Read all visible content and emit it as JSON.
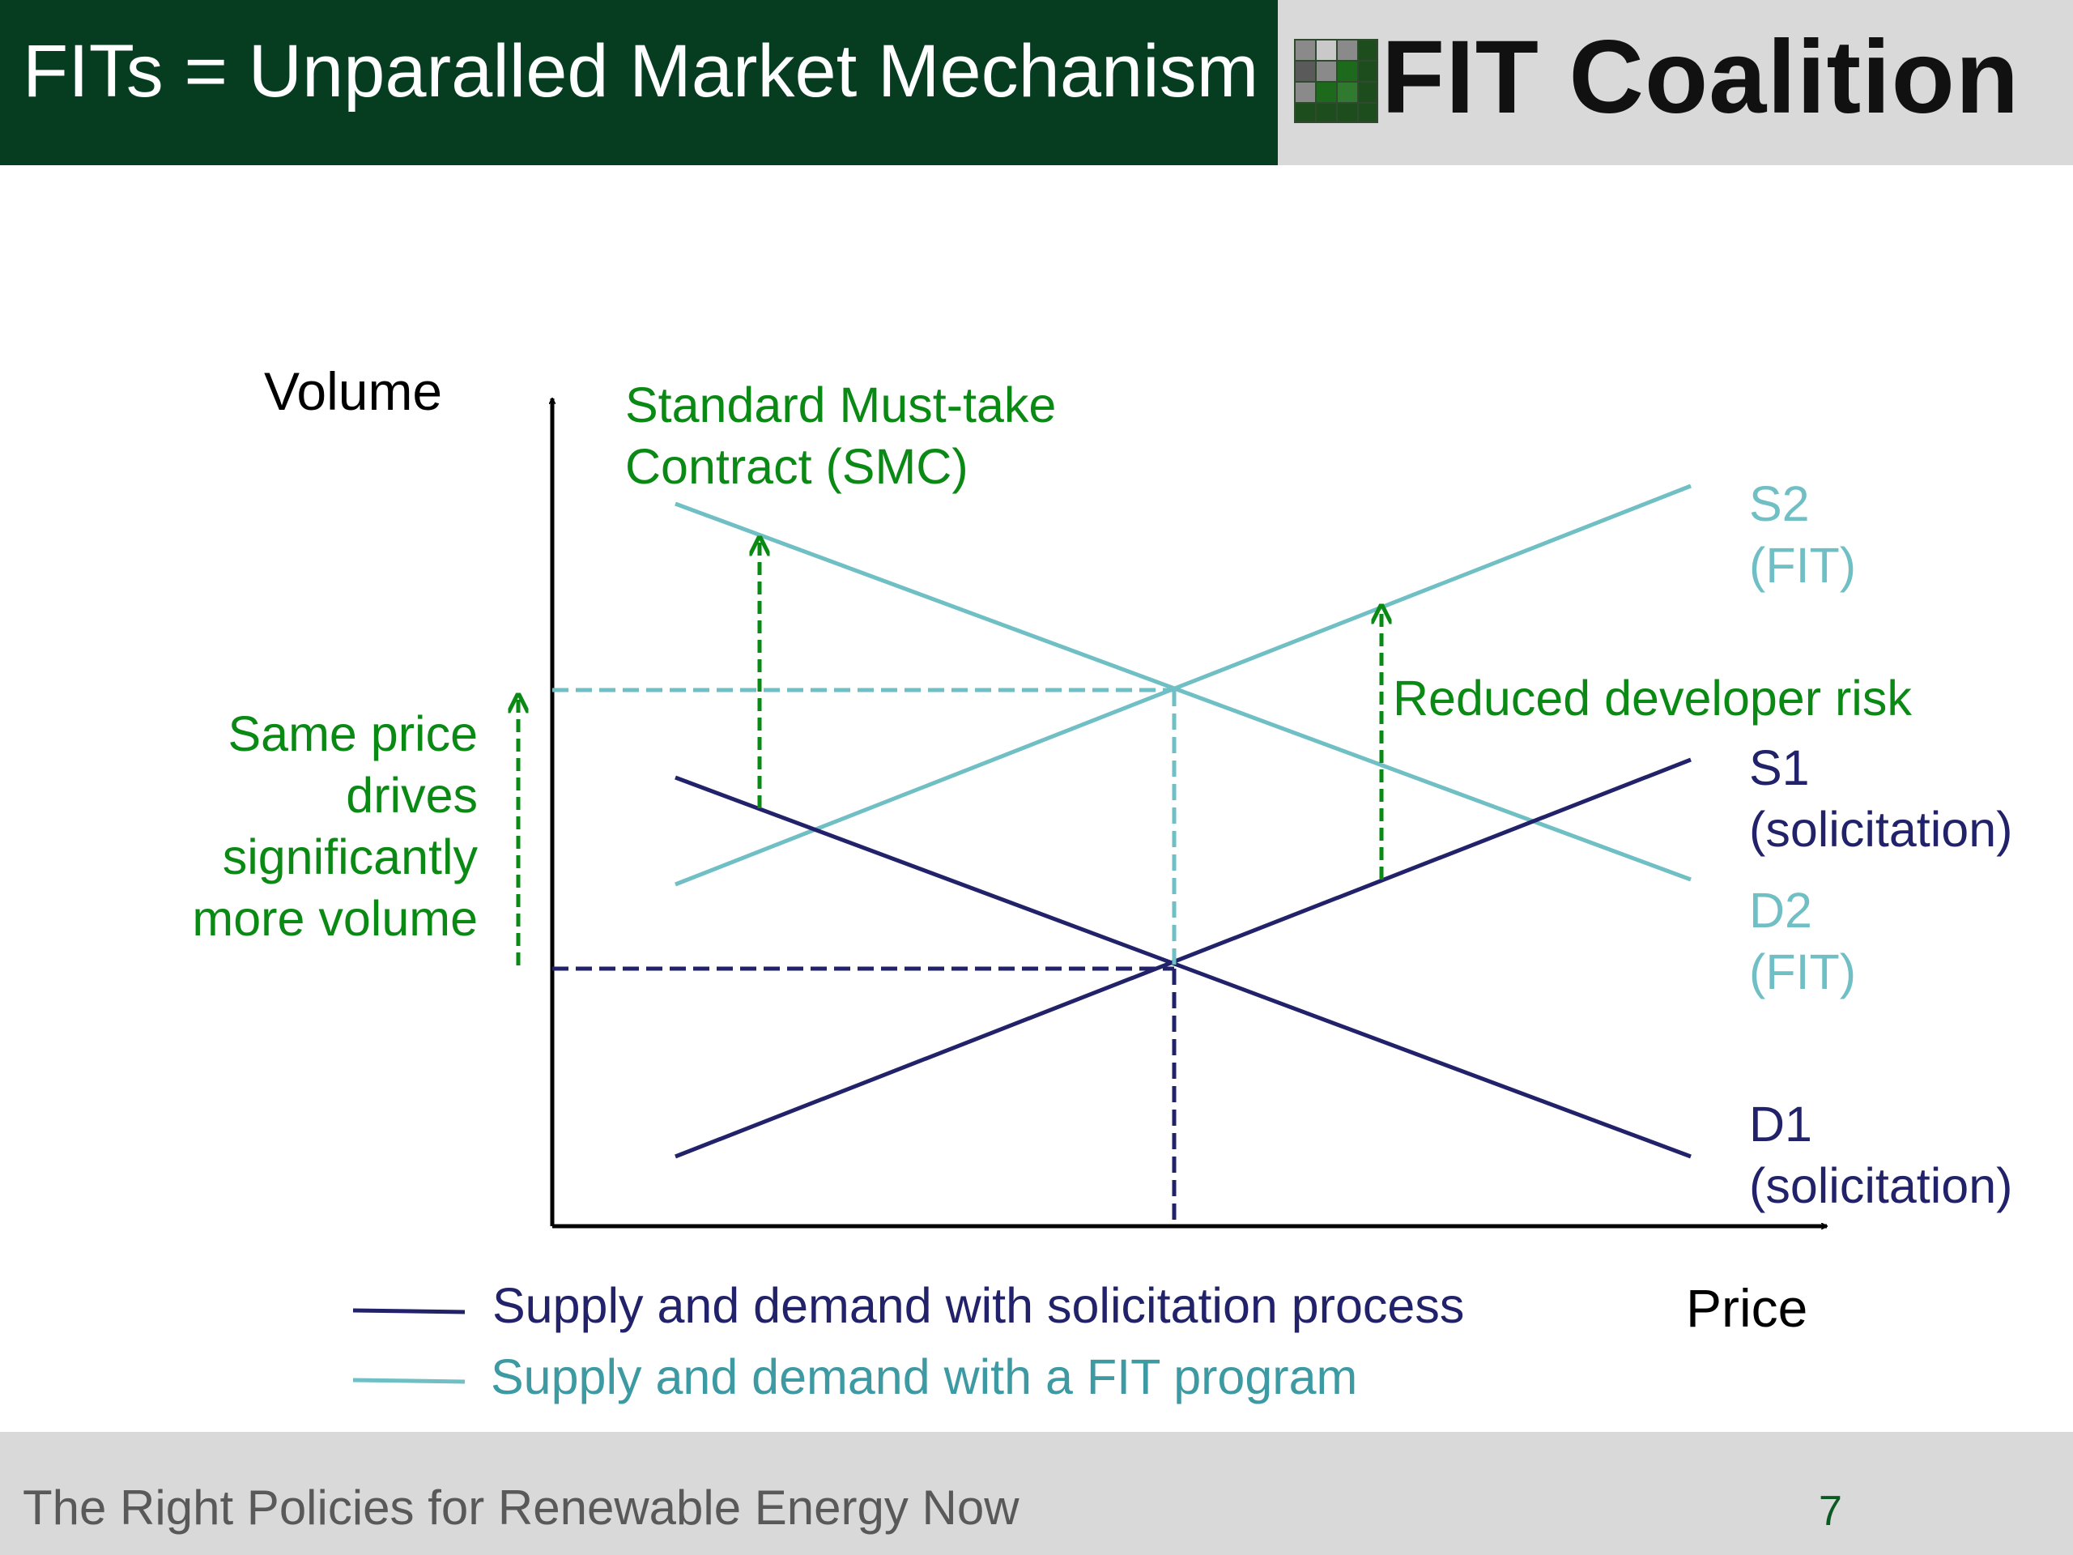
{
  "slide": {
    "title": "FITs = Unparalled Market Mechanism",
    "logo_text": "FIT Coalition",
    "footer": "The Right Policies for Renewable Energy Now",
    "page_number": "7"
  },
  "diagram": {
    "axes": {
      "y_label": "Volume",
      "x_label": "Price"
    },
    "annotations": {
      "smc_line1": "Standard Must-take",
      "smc_line2": "Contract (SMC)",
      "risk": "Reduced developer risk",
      "volume_line1": "Same price",
      "volume_line2": "drives",
      "volume_line3": "significantly",
      "volume_line4": "more volume"
    },
    "curve_labels": {
      "s2_line1": "S2",
      "s2_line2": "(FIT)",
      "s1_line1": "S1",
      "s1_line2": "(solicitation)",
      "d2_line1": "D2",
      "d2_line2": "(FIT)",
      "d1_line1": "D1",
      "d1_line2": "(solicitation)"
    },
    "legend": {
      "solicitation": "Supply and demand with solicitation process",
      "fit": "Supply and demand with a FIT program"
    },
    "colors": {
      "solicitation": "#22226b",
      "fit": "#6fbfc4",
      "annotation": "#0a8a14",
      "axis": "#000000",
      "header_green": "#063d21"
    }
  }
}
